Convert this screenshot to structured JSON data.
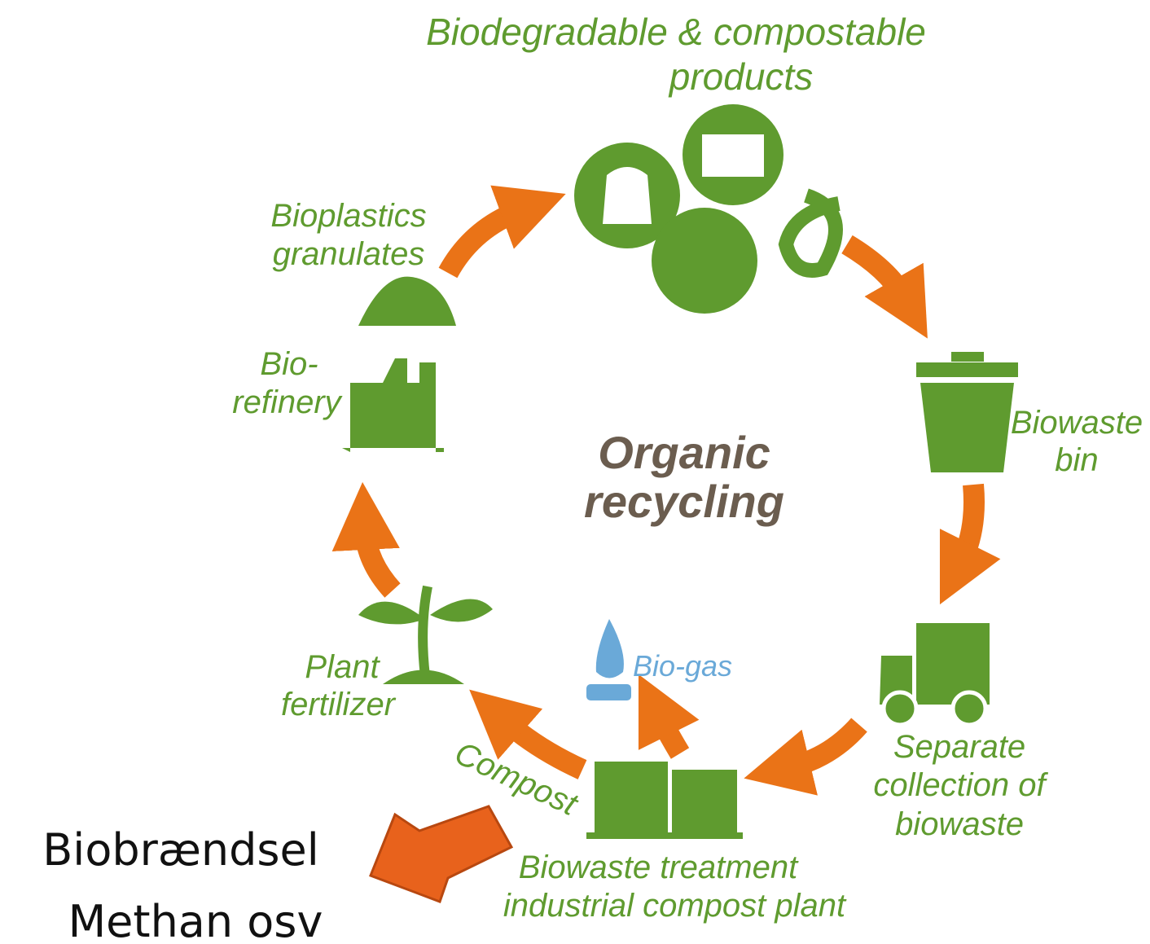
{
  "title": {
    "lines": [
      "Organic",
      "recycling"
    ]
  },
  "nodes": [
    {
      "lines": [
        "Biodegradable & compostable",
        "products"
      ]
    },
    {
      "lines": [
        "Biowaste",
        "bin"
      ]
    },
    {
      "lines": [
        "Separate",
        "collection of",
        "biowaste"
      ]
    },
    {
      "lines": [
        "Biowaste treatment",
        "industrial compost plant"
      ]
    },
    {
      "lines": [
        "Compost"
      ]
    },
    {
      "lines": [
        "Bio-gas"
      ]
    },
    {
      "lines": [
        "Plant",
        "fertilizer"
      ]
    },
    {
      "lines": [
        "Bio-",
        "refinery"
      ]
    },
    {
      "lines": [
        "Bioplastics",
        "granulates"
      ]
    }
  ],
  "note": {
    "lines": [
      "Biobrændsel",
      "Methan osv"
    ]
  }
}
